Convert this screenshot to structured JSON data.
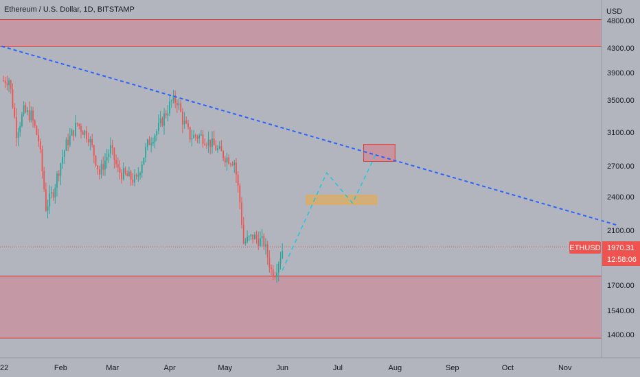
{
  "header": {
    "symbol_title": "Ethereum / U.S. Dollar, 1D, BITSTAMP",
    "currency": "USD"
  },
  "colors": {
    "background": "#b2b5be",
    "up_candle": "#26a69a",
    "down_candle": "#ef5350",
    "zone_fill": "#c98f9b",
    "zone_line": "#e53935",
    "trendline": "#2962ff",
    "projection": "#26c6da",
    "orange_box": "#f9a825",
    "price_tag": "#ef5350"
  },
  "chart_data": {
    "type": "candlestick",
    "symbol": "ETHUSD",
    "interval": "1D",
    "exchange": "BITSTAMP",
    "scale": "log",
    "grid": false,
    "x_tick_labels": [
      "22",
      "Feb",
      "Mar",
      "Apr",
      "May",
      "Jun",
      "Jul",
      "Aug",
      "Sep",
      "Oct",
      "Nov"
    ],
    "y_tick_labels": [
      "4800.00",
      "4300.00",
      "3900.00",
      "3500.00",
      "3100.00",
      "2700.00",
      "2400.00",
      "2100.00",
      "1700.00",
      "1540.00",
      "1400.00"
    ],
    "last_price": {
      "symbol_label": "ETHUSD",
      "price_label": "1970.31",
      "countdown": "12:58:06",
      "value": 1970.31
    },
    "ohlc_path_points": [
      {
        "date": "2022-01-01",
        "price": 3780
      },
      {
        "date": "2022-01-04",
        "price": 3800
      },
      {
        "date": "2022-01-08",
        "price": 3100
      },
      {
        "date": "2022-01-12",
        "price": 3350
      },
      {
        "date": "2022-01-16",
        "price": 3300
      },
      {
        "date": "2022-01-20",
        "price": 3000
      },
      {
        "date": "2022-01-24",
        "price": 2300
      },
      {
        "date": "2022-01-28",
        "price": 2450
      },
      {
        "date": "2022-02-04",
        "price": 2950
      },
      {
        "date": "2022-02-10",
        "price": 3200
      },
      {
        "date": "2022-02-16",
        "price": 3050
      },
      {
        "date": "2022-02-22",
        "price": 2620
      },
      {
        "date": "2022-02-28",
        "price": 2900
      },
      {
        "date": "2022-03-04",
        "price": 2650
      },
      {
        "date": "2022-03-08",
        "price": 2600
      },
      {
        "date": "2022-03-14",
        "price": 2550
      },
      {
        "date": "2022-03-20",
        "price": 2950
      },
      {
        "date": "2022-03-26",
        "price": 3150
      },
      {
        "date": "2022-04-02",
        "price": 3480
      },
      {
        "date": "2022-04-05",
        "price": 3500
      },
      {
        "date": "2022-04-08",
        "price": 3250
      },
      {
        "date": "2022-04-12",
        "price": 3050
      },
      {
        "date": "2022-04-18",
        "price": 3050
      },
      {
        "date": "2022-04-24",
        "price": 2950
      },
      {
        "date": "2022-05-01",
        "price": 2800
      },
      {
        "date": "2022-05-06",
        "price": 2750
      },
      {
        "date": "2022-05-09",
        "price": 2350
      },
      {
        "date": "2022-05-11",
        "price": 2000
      },
      {
        "date": "2022-05-16",
        "price": 2050
      },
      {
        "date": "2022-05-22",
        "price": 2000
      },
      {
        "date": "2022-05-26",
        "price": 1800
      },
      {
        "date": "2022-05-28",
        "price": 1790
      },
      {
        "date": "2022-06-01",
        "price": 1950
      }
    ],
    "trendline": [
      {
        "date": "2021-12-31",
        "price": 4330
      },
      {
        "date": "2022-11-30",
        "price": 2140
      }
    ],
    "projection_path": [
      {
        "date": "2022-06-01",
        "price": 1800
      },
      {
        "date": "2022-06-25",
        "price": 2630
      },
      {
        "date": "2022-07-09",
        "price": 2340
      },
      {
        "date": "2022-07-22",
        "price": 2850
      }
    ],
    "zones": [
      {
        "name": "upper-resistance-zone",
        "from_price": 4330,
        "to_price": 4820
      },
      {
        "name": "lower-support-zone",
        "from_price": 1380,
        "to_price": 1760
      }
    ],
    "boxes": [
      {
        "name": "target-box",
        "from_date": "2022-07-15",
        "to_date": "2022-08-01",
        "from_price": 2750,
        "to_price": 2950,
        "color": "red"
      },
      {
        "name": "retest-box",
        "from_date": "2022-06-14",
        "to_date": "2022-07-22",
        "from_price": 2330,
        "to_price": 2410,
        "color": "orange"
      }
    ]
  }
}
